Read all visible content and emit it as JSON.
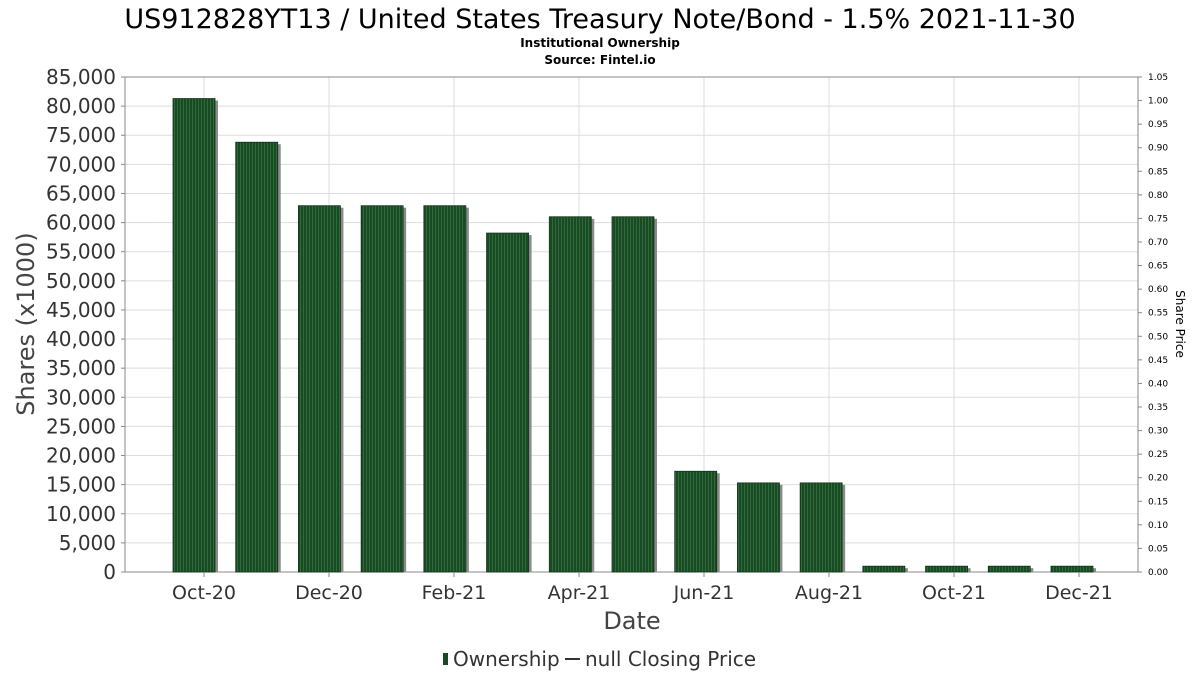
{
  "chart_data": {
    "type": "bar",
    "title": "US912828YT13 / United States Treasury Note/Bond - 1.5% 2021-11-30",
    "subtitle": "Institutional Ownership",
    "source": "Source: Fintel.io",
    "xlabel": "Date",
    "ylabel": "Shares (x1000)",
    "y2label": "Share Price",
    "ylim": [
      0,
      85000
    ],
    "y2lim": [
      0,
      1.05
    ],
    "yticks": [
      "0",
      "5,000",
      "10,000",
      "15,000",
      "20,000",
      "25,000",
      "30,000",
      "35,000",
      "40,000",
      "45,000",
      "50,000",
      "55,000",
      "60,000",
      "65,000",
      "70,000",
      "75,000",
      "80,000",
      "85,000"
    ],
    "y2ticks": [
      "0.00",
      "0.05",
      "0.10",
      "0.15",
      "0.20",
      "0.25",
      "0.30",
      "0.35",
      "0.40",
      "0.45",
      "0.50",
      "0.55",
      "0.60",
      "0.65",
      "0.70",
      "0.75",
      "0.80",
      "0.85",
      "0.90",
      "0.95",
      "1.00",
      "1.05"
    ],
    "xticks": [
      "Oct-20",
      "Dec-20",
      "Feb-21",
      "Apr-21",
      "Jun-21",
      "Aug-21",
      "Oct-21",
      "Dec-21"
    ],
    "series": [
      {
        "name": "Ownership",
        "values": [
          81300,
          73800,
          62900,
          62900,
          62900,
          58200,
          61000,
          61000,
          17300,
          15300,
          15300,
          1000,
          1000,
          1000,
          1000
        ]
      },
      {
        "name": "null Closing Price",
        "values": []
      }
    ],
    "grid": true,
    "legend_position": "bottom",
    "colors": {
      "bar": "#1a4a24",
      "bar_stripe": "#2f6a3a",
      "bar_shadow": "#8a8a8a",
      "grid": "#dddddd",
      "axis": "#888888"
    }
  }
}
